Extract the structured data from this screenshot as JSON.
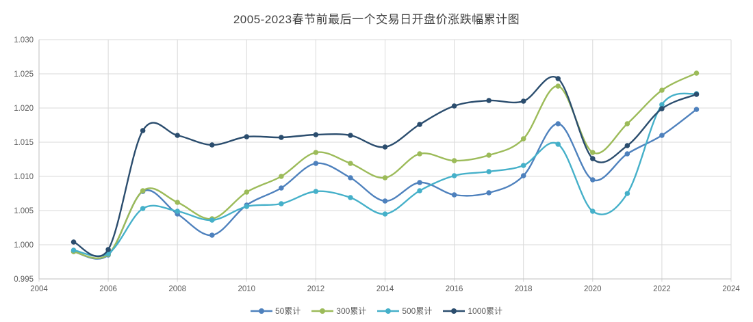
{
  "title": "2005-2023春节前最后一个交易日开盘价涨跌幅累计图",
  "colors": {
    "title_text": "#404040",
    "axis_label": "#595959",
    "gridline": "#d9d9d9",
    "axis_line": "#bfbfbf",
    "background": "#ffffff"
  },
  "chart_data": {
    "type": "line",
    "title": "2005-2023春节前最后一个交易日开盘价涨跌幅累计图",
    "smooth": true,
    "grid": true,
    "legend_position": "bottom",
    "x": [
      2005,
      2006,
      2007,
      2008,
      2009,
      2010,
      2011,
      2012,
      2013,
      2014,
      2015,
      2016,
      2017,
      2018,
      2019,
      2020,
      2021,
      2022,
      2023
    ],
    "series": [
      {
        "name": "50累计",
        "color": "#4e81bd",
        "values": [
          0.999,
          0.9985,
          1.0078,
          1.0045,
          1.0014,
          1.0058,
          1.0083,
          1.0119,
          1.0098,
          1.0064,
          1.0091,
          1.0073,
          1.0076,
          1.0101,
          1.0177,
          1.0095,
          1.0133,
          1.016,
          1.0198
        ]
      },
      {
        "name": "300累计",
        "color": "#9cbb59",
        "values": [
          0.999,
          0.9986,
          1.0079,
          1.0062,
          1.0038,
          1.0077,
          1.01,
          1.0135,
          1.0119,
          1.0098,
          1.0133,
          1.0123,
          1.0131,
          1.0155,
          1.0232,
          1.0135,
          1.0177,
          1.0226,
          1.0251
        ]
      },
      {
        "name": "500累计",
        "color": "#45b0c9",
        "values": [
          0.9992,
          0.9987,
          1.0053,
          1.0049,
          1.0036,
          1.0056,
          1.006,
          1.0078,
          1.0069,
          1.0045,
          1.0079,
          1.0101,
          1.0107,
          1.0116,
          1.0147,
          1.0049,
          1.0075,
          1.0205,
          1.0221
        ]
      },
      {
        "name": "1000累计",
        "color": "#2b4d6e",
        "values": [
          1.0004,
          0.9993,
          1.0167,
          1.016,
          1.0146,
          1.0158,
          1.0157,
          1.0161,
          1.016,
          1.0143,
          1.0176,
          1.0203,
          1.0211,
          1.021,
          1.0243,
          1.0126,
          1.0145,
          1.0199,
          1.022
        ]
      }
    ],
    "x_axis": {
      "min": 2004,
      "max": 2024,
      "tick_step": 2,
      "ticks": [
        2004,
        2006,
        2008,
        2010,
        2012,
        2014,
        2016,
        2018,
        2020,
        2022,
        2024
      ]
    },
    "y_axis": {
      "min": 0.995,
      "max": 1.03,
      "tick_step": 0.005,
      "ticks": [
        "0.995",
        "1.000",
        "1.005",
        "1.010",
        "1.015",
        "1.020",
        "1.025",
        "1.030"
      ]
    }
  }
}
